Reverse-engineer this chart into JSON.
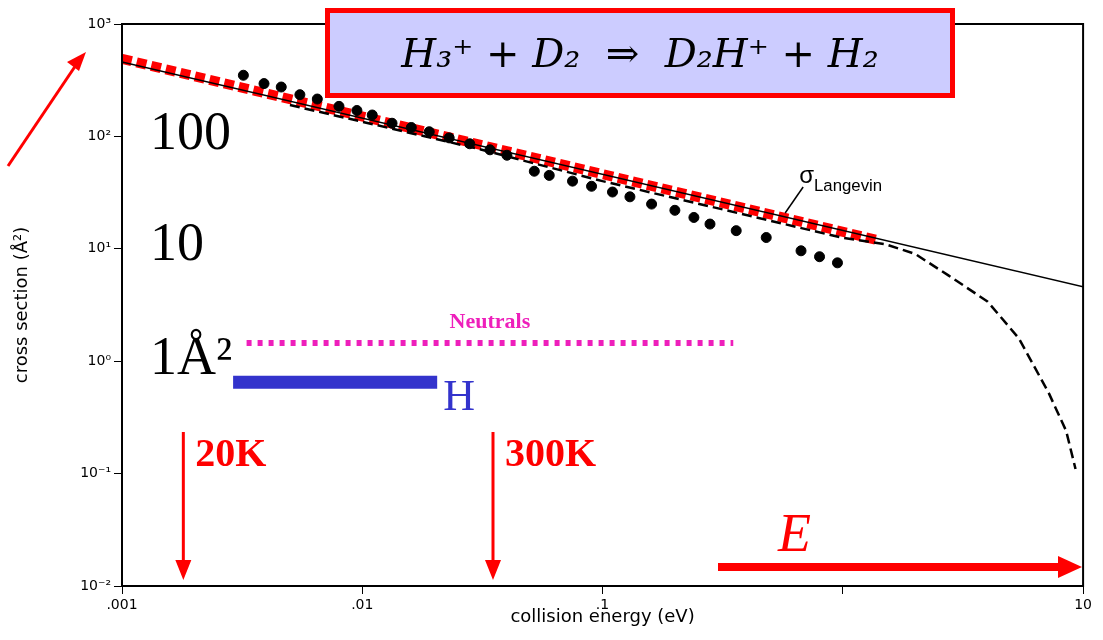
{
  "chart_data": {
    "type": "line",
    "title": "H₃⁺ + D₂  ⇒  D₂H⁺ + H₂",
    "xlabel": "collision energy (eV)",
    "ylabel": "cross section (Å²)",
    "log": "xy",
    "xlim": [
      0.001,
      10
    ],
    "ylim": [
      0.01,
      1000
    ],
    "xticks": [
      {
        "value": 0.001,
        "label": ".001"
      },
      {
        "value": 0.01,
        "label": ".01"
      },
      {
        "value": 0.1,
        "label": ".1"
      },
      {
        "value": 1,
        "label": null
      },
      {
        "value": 10,
        "label": "10"
      }
    ],
    "yticks": [
      {
        "value": 0.01,
        "label": "10⁻²"
      },
      {
        "value": 0.1,
        "label": "10⁻¹"
      },
      {
        "value": 1,
        "label": "10⁰"
      },
      {
        "value": 10,
        "label": "10¹"
      },
      {
        "value": 100,
        "label": "10²"
      },
      {
        "value": 1000,
        "label": "10³"
      }
    ],
    "series": [
      {
        "type": "line",
        "name": "σ$_{Langevin}$",
        "color": "#000000",
        "line_style": "solid",
        "marker": "none",
        "x": [
          0.001,
          10
        ],
        "values": [
          460,
          4.6
        ]
      },
      {
        "type": "line",
        "color": "#000000",
        "line_style": "dashed",
        "marker": "none",
        "x": [
          0.005,
          0.01,
          0.03,
          0.1,
          0.3,
          1,
          1.5,
          2,
          2.75,
          4,
          5.4,
          7.2,
          8.5,
          9.3
        ],
        "values": [
          190,
          135,
          78,
          40,
          23,
          12.5,
          11,
          9,
          5.8,
          3.4,
          1.6,
          0.52,
          0.24,
          0.11
        ]
      },
      {
        "type": "scatter",
        "color": "#000000",
        "marker": "circle",
        "x": [
          0.0032,
          0.0039,
          0.0046,
          0.0055,
          0.0065,
          0.008,
          0.0095,
          0.011,
          0.0133,
          0.016,
          0.019,
          0.023,
          0.028,
          0.034,
          0.04,
          0.052,
          0.06,
          0.075,
          0.09,
          0.11,
          0.13,
          0.16,
          0.2,
          0.24,
          0.28,
          0.36,
          0.48,
          0.67,
          0.8,
          0.95
        ],
        "values": [
          350,
          295,
          275,
          235,
          215,
          185,
          170,
          155,
          131,
          120,
          110,
          97,
          86,
          76,
          68,
          49,
          45,
          40,
          36,
          32,
          29,
          25,
          22,
          19,
          16.6,
          14.5,
          12.6,
          9.6,
          8.5,
          7.5
        ]
      },
      {
        "type": "line",
        "color": "#ff0000",
        "line_style": "dashed",
        "marker": "none",
        "x": [
          0.001,
          1.38
        ],
        "values": [
          490,
          12
        ]
      },
      {
        "type": "line",
        "name": "Neutrals",
        "color": "#ee1fbb",
        "line_style": "dotted",
        "marker": "none",
        "x": [
          0.0033,
          0.35
        ],
        "values": [
          1.45,
          1.45
        ]
      },
      {
        "type": "line",
        "name": "H",
        "color": "#3333cc",
        "line_style": "solid",
        "marker": "none",
        "x": [
          0.0029,
          0.0205
        ],
        "values": [
          0.65,
          0.65
        ]
      }
    ],
    "ref_lines": [
      {
        "axis": "x",
        "value": 0.0018,
        "label": "20K",
        "color": "#ff0000"
      },
      {
        "axis": "x",
        "value": 0.035,
        "label": "300K",
        "color": "#ff0000"
      }
    ],
    "annotations": [
      "100",
      "10",
      "1Å²",
      "E"
    ]
  }
}
